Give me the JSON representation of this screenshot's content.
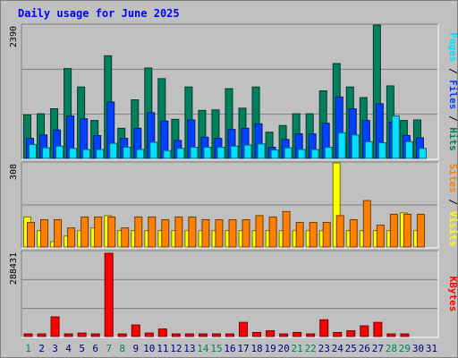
{
  "title": "Daily usage for June 2025",
  "colors": {
    "background": "#c0c0c0",
    "title": "#0000ff",
    "hits": "#00805c",
    "files": "#0040ff",
    "pages": "#00e0ff",
    "visits": "#ffff00",
    "sites": "#ff8000",
    "kbytes": "#ff0000",
    "weekend_day": "#00805c",
    "weekday": "#000080"
  },
  "chart_data": [
    {
      "type": "bar",
      "title": "Daily usage for June 2025",
      "legend": [
        "Pages",
        "Files",
        "Hits"
      ],
      "legend_separator": " / ",
      "y_tick_label": "2390",
      "ylim": [
        0,
        2390
      ],
      "categories": [
        "1",
        "2",
        "3",
        "4",
        "5",
        "6",
        "7",
        "8",
        "9",
        "10",
        "11",
        "12",
        "13",
        "14",
        "15",
        "16",
        "17",
        "18",
        "19",
        "20",
        "21",
        "22",
        "23",
        "24",
        "25",
        "26",
        "27",
        "28",
        "29",
        "30",
        "31"
      ],
      "weekend_days": [
        "1",
        "7",
        "8",
        "14",
        "15",
        "21",
        "22",
        "28",
        "29"
      ],
      "series": [
        {
          "name": "Hits",
          "values": [
            780,
            800,
            890,
            1610,
            1280,
            680,
            1840,
            540,
            1050,
            1620,
            1430,
            700,
            1280,
            860,
            870,
            1250,
            900,
            1280,
            470,
            590,
            800,
            800,
            1210,
            1700,
            1280,
            1090,
            2390,
            1300,
            680,
            690,
            0
          ]
        },
        {
          "name": "Files",
          "values": [
            360,
            420,
            510,
            760,
            710,
            410,
            1010,
            360,
            540,
            820,
            670,
            320,
            690,
            380,
            360,
            520,
            540,
            620,
            200,
            340,
            440,
            440,
            630,
            1100,
            890,
            680,
            980,
            650,
            410,
            370,
            0
          ]
        },
        {
          "name": "Pages",
          "values": [
            250,
            190,
            220,
            180,
            160,
            160,
            270,
            200,
            160,
            290,
            140,
            180,
            200,
            200,
            200,
            220,
            240,
            260,
            150,
            190,
            160,
            160,
            200,
            460,
            420,
            300,
            280,
            760,
            300,
            180,
            0
          ]
        }
      ]
    },
    {
      "type": "bar",
      "legend": [
        "Sites",
        "Visits"
      ],
      "legend_separator": " / ",
      "y_tick_label": "308",
      "ylim": [
        0,
        308
      ],
      "series": [
        {
          "name": "Visits",
          "values": [
            110,
            60,
            20,
            40,
            60,
            70,
            115,
            60,
            60,
            60,
            60,
            60,
            60,
            60,
            60,
            60,
            60,
            60,
            60,
            60,
            60,
            60,
            60,
            308,
            60,
            60,
            60,
            60,
            125,
            60,
            0
          ]
        },
        {
          "name": "Sites",
          "values": [
            90,
            100,
            100,
            70,
            110,
            110,
            110,
            70,
            110,
            110,
            100,
            110,
            110,
            100,
            100,
            100,
            100,
            115,
            110,
            130,
            90,
            90,
            90,
            115,
            100,
            170,
            80,
            120,
            120,
            120,
            0
          ]
        }
      ]
    },
    {
      "type": "bar",
      "legend": [
        "KBytes"
      ],
      "y_tick_label": "288431",
      "ylim": [
        0,
        288431
      ],
      "series": [
        {
          "name": "KBytes",
          "values": [
            9000,
            9000,
            68000,
            9000,
            12000,
            9000,
            288431,
            9000,
            40000,
            12000,
            26000,
            9000,
            9000,
            9000,
            9000,
            9000,
            49000,
            14000,
            20000,
            9000,
            14000,
            9000,
            58000,
            14000,
            20000,
            37000,
            49000,
            9000,
            9000,
            0,
            0
          ]
        }
      ]
    }
  ]
}
